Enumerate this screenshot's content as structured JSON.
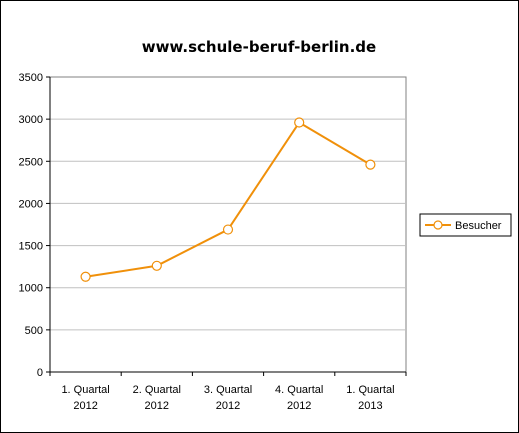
{
  "chart_data": {
    "type": "line",
    "title": "www.schule-beruf-berlin.de",
    "categories": [
      [
        "1. Quartal",
        "2012"
      ],
      [
        "2. Quartal",
        "2012"
      ],
      [
        "3. Quartal",
        "2012"
      ],
      [
        "4. Quartal",
        "2012"
      ],
      [
        "1. Quartal",
        "2013"
      ]
    ],
    "series": [
      {
        "name": "Besucher",
        "values": [
          1130,
          1260,
          1690,
          2960,
          2460
        ]
      }
    ],
    "ylim": [
      0,
      3500
    ],
    "yticks": [
      0,
      500,
      1000,
      1500,
      2000,
      2500,
      3000,
      3500
    ],
    "grid": true,
    "legend_position": "right",
    "colors": {
      "line": "#f0900a",
      "marker_fill": "#ffffff",
      "grid": "#c0c0c0",
      "axis": "#808080"
    }
  }
}
